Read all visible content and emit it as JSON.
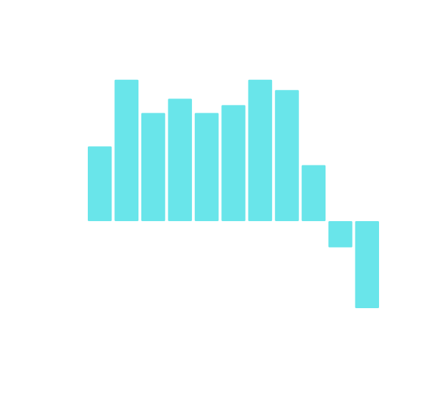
{
  "chart_data": {
    "type": "bar",
    "categories": [
      "",
      "",
      "",
      "",
      "",
      "",
      "",
      "",
      "",
      "",
      ""
    ],
    "values": [
      44.6,
      84.4,
      64.5,
      73.0,
      64.5,
      69.2,
      84.4,
      78.2,
      33.4,
      -15.6,
      -51.9
    ],
    "ylim": [
      -60,
      100
    ],
    "grid": false,
    "colors": {
      "bar": "#69e5ea",
      "background": "#ffffff"
    }
  }
}
